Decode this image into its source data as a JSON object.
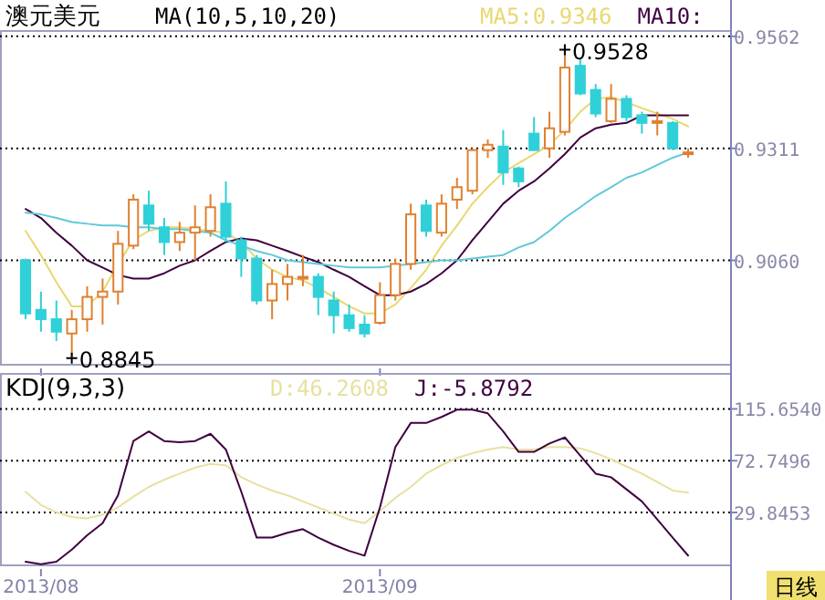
{
  "chart_data": [
    {
      "type": "candlestick",
      "title": "澳元美元",
      "subtitle": "MA(10,5,10,20)",
      "categories": [
        null,
        "2013/08",
        null,
        null,
        null,
        null,
        null,
        null,
        null,
        null,
        null,
        null,
        null,
        null,
        null,
        null,
        null,
        null,
        null,
        null,
        null,
        null,
        null,
        "2013/09",
        null,
        null,
        null,
        null,
        null,
        null,
        null,
        null,
        null,
        null,
        null,
        null,
        null,
        null,
        null,
        null,
        null,
        null,
        null,
        null
      ],
      "ohlc": [
        [
          0.906,
          0.9064,
          0.8928,
          0.8941
        ],
        [
          0.8949,
          0.899,
          0.89,
          0.8928
        ],
        [
          0.8928,
          0.897,
          0.8879,
          0.89
        ],
        [
          0.8896,
          0.8949,
          0.8845,
          0.8928
        ],
        [
          0.8928,
          0.9002,
          0.89,
          0.8978
        ],
        [
          0.8978,
          0.9019,
          0.8916,
          0.899
        ],
        [
          0.899,
          0.9126,
          0.8961,
          0.9097
        ],
        [
          0.9093,
          0.9208,
          0.9085,
          0.9196
        ],
        [
          0.9183,
          0.9216,
          0.9126,
          0.9142
        ],
        [
          0.9134,
          0.9155,
          0.9072,
          0.9101
        ],
        [
          0.9101,
          0.9146,
          0.9081,
          0.9122
        ],
        [
          0.9122,
          0.9183,
          0.906,
          0.9134
        ],
        [
          0.9126,
          0.9208,
          0.9113,
          0.9179
        ],
        [
          0.9187,
          0.9237,
          0.9101,
          0.9113
        ],
        [
          0.9105,
          0.9113,
          0.9023,
          0.9064
        ],
        [
          0.9064,
          0.9072,
          0.8961,
          0.897
        ],
        [
          0.897,
          0.9039,
          0.8928,
          0.9007
        ],
        [
          0.9007,
          0.9052,
          0.897,
          0.9023
        ],
        [
          0.9019,
          0.9072,
          0.9002,
          0.9023
        ],
        [
          0.9023,
          0.9031,
          0.8937,
          0.8978
        ],
        [
          0.897,
          0.899,
          0.8896,
          0.8937
        ],
        [
          0.8937,
          0.8961,
          0.89,
          0.8908
        ],
        [
          0.8916,
          0.8937,
          0.8887,
          0.8896
        ],
        [
          0.892,
          0.9011,
          0.8916,
          0.8982
        ],
        [
          0.8982,
          0.9064,
          0.897,
          0.9052
        ],
        [
          0.9052,
          0.9187,
          0.9039,
          0.9163
        ],
        [
          0.9183,
          0.9196,
          0.9113,
          0.9126
        ],
        [
          0.9122,
          0.9208,
          0.9113,
          0.9187
        ],
        [
          0.9196,
          0.9245,
          0.9175,
          0.9224
        ],
        [
          0.9216,
          0.9311,
          0.9208,
          0.9307
        ],
        [
          0.9307,
          0.9331,
          0.929,
          0.9319
        ],
        [
          0.9315,
          0.9352,
          0.9229,
          0.9257
        ],
        [
          0.9266,
          0.927,
          0.9224,
          0.9237
        ],
        [
          0.9344,
          0.9381,
          0.9307,
          0.9307
        ],
        [
          0.9311,
          0.9393,
          0.929,
          0.9356
        ],
        [
          0.9348,
          0.9528,
          0.934,
          0.9492
        ],
        [
          0.9496,
          0.9512,
          0.943,
          0.9434
        ],
        [
          0.9442,
          0.9455,
          0.9381,
          0.9389
        ],
        [
          0.9372,
          0.9455,
          0.9368,
          0.9422
        ],
        [
          0.9422,
          0.943,
          0.9372,
          0.9381
        ],
        [
          0.9385,
          0.9393,
          0.9344,
          0.9368
        ],
        [
          0.9368,
          0.9393,
          0.934,
          0.9372
        ],
        [
          0.9368,
          0.9372,
          0.9307,
          0.9311
        ],
        [
          0.9302,
          0.9311,
          0.929,
          0.9302
        ]
      ],
      "series": [
        {
          "type": "line",
          "color": "#e8d870",
          "values": [
            0.9126,
            0.9072,
            0.9011,
            0.8957,
            0.8957,
            0.899,
            0.9052,
            0.9105,
            0.9126,
            0.9134,
            0.9134,
            0.913,
            0.9126,
            0.9122,
            0.9101,
            0.9064,
            0.9039,
            0.9023,
            0.9015,
            0.8998,
            0.8978,
            0.8957,
            0.8941,
            0.8941,
            0.8961,
            0.8998,
            0.9039,
            0.9093,
            0.9138,
            0.9187,
            0.9224,
            0.9257,
            0.9278,
            0.9298,
            0.9319,
            0.9352,
            0.9393,
            0.9422,
            0.9426,
            0.9414,
            0.9401,
            0.9389,
            0.9377,
            0.936
          ]
        },
        {
          "type": "line",
          "color": "#400040",
          "values": [
            0.9175,
            0.9155,
            0.9122,
            0.9093,
            0.906,
            0.9044,
            0.9027,
            0.9019,
            0.9019,
            0.9031,
            0.9048,
            0.906,
            0.9081,
            0.9101,
            0.9109,
            0.9105,
            0.9093,
            0.9081,
            0.9068,
            0.9056,
            0.9039,
            0.9023,
            0.9002,
            0.8982,
            0.8982,
            0.899,
            0.9007,
            0.9031,
            0.906,
            0.9105,
            0.9146,
            0.9187,
            0.9216,
            0.9237,
            0.9266,
            0.9298,
            0.9335,
            0.9356,
            0.9364,
            0.9368,
            0.9385,
            0.9385,
            0.9385,
            0.9385
          ]
        },
        {
          "type": "line",
          "color": "#60c8d8",
          "values": [
            0.9167,
            0.9163,
            0.9155,
            0.9146,
            0.9142,
            0.9138,
            0.9138,
            0.9134,
            0.9134,
            0.913,
            0.913,
            0.9126,
            0.9122,
            0.9105,
            0.9093,
            0.9081,
            0.9072,
            0.906,
            0.9056,
            0.9052,
            0.9048,
            0.9044,
            0.9044,
            0.9044,
            0.9048,
            0.9052,
            0.9056,
            0.906,
            0.906,
            0.9064,
            0.9068,
            0.9072,
            0.9089,
            0.9101,
            0.9126,
            0.9155,
            0.9179,
            0.9204,
            0.9224,
            0.9245,
            0.9257,
            0.9274,
            0.929,
            0.9302
          ]
        }
      ],
      "ylim": [
        0.8826,
        0.9574
      ],
      "yticks": [
        {
          "value": 0.906,
          "label": "0.9060"
        },
        {
          "value": 0.9311,
          "label": "0.9311"
        },
        {
          "value": 0.9562,
          "label": "0.9562"
        }
      ],
      "grid": "y",
      "tick_labels": "y",
      "annotations": [
        "0.9528",
        "0.8845",
        "MA5:0.9346",
        "MA10:"
      ]
    },
    {
      "type": "line",
      "title": "KDJ(9,3,3)",
      "categories": [
        null,
        "2013/08",
        null,
        null,
        null,
        null,
        null,
        null,
        null,
        null,
        null,
        null,
        null,
        null,
        null,
        null,
        null,
        null,
        null,
        null,
        null,
        null,
        null,
        "2013/09",
        null,
        null,
        null,
        null,
        null,
        null,
        null,
        null,
        null,
        null,
        null,
        null,
        null,
        null,
        null,
        null,
        null,
        null,
        null,
        null
      ],
      "series": [
        {
          "color": "#e8e0a0",
          "values": [
            47,
            36,
            30,
            26,
            25,
            28,
            34,
            43,
            51,
            57,
            62,
            67,
            70,
            69,
            59,
            53,
            48,
            44,
            39,
            34,
            29,
            24,
            21,
            31,
            42,
            51,
            62,
            69,
            75,
            79,
            82,
            84,
            82,
            82,
            84,
            84,
            83,
            79,
            74,
            68,
            62,
            55,
            48,
            46.2608
          ]
        },
        {
          "color": "#400040",
          "values": [
            -11,
            -13,
            -11,
            -1,
            11,
            21,
            44,
            89,
            97,
            89,
            88,
            89,
            95,
            82,
            47,
            9,
            9,
            13,
            16,
            9,
            3,
            -2,
            -6,
            34,
            84,
            104,
            104,
            109,
            115,
            115,
            112,
            97,
            80,
            80,
            87,
            92,
            77,
            62,
            59,
            49,
            39,
            24,
            9,
            -5.8792
          ]
        }
      ],
      "ylim": [
        -14,
        144.7
      ],
      "yticks": [
        {
          "value": 115.654,
          "label": "115.6540"
        },
        {
          "value": 72.7496,
          "label": "72.7496"
        },
        {
          "value": 29.8453,
          "label": "29.8453"
        }
      ],
      "grid": "y",
      "annotations": [
        "D:46.2608",
        "J:-5.8792",
        "日线"
      ]
    }
  ]
}
